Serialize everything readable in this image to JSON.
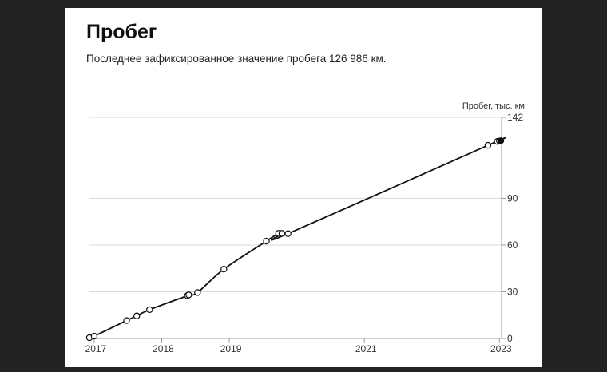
{
  "header": {
    "title": "Пробег",
    "subtitle": "Последнее зафиксированное значение пробега 126 986 км."
  },
  "chart_data": {
    "type": "line",
    "title": "Пробег",
    "ylabel": "Пробег, тыс. км",
    "xlabel": "",
    "y_ticks": [
      0,
      30,
      60,
      90,
      142
    ],
    "x_ticks": [
      2017,
      2018,
      2019,
      2021,
      2023
    ],
    "ylim": [
      0,
      142
    ],
    "grid": true,
    "colors": {
      "line": "#111111",
      "point_fill": "#ffffff",
      "last_point_fill": "#111111",
      "grid": "#d9d9d9"
    },
    "series": [
      {
        "points": [
          {
            "x": 2016.93,
            "y": 0.5
          },
          {
            "x": 2017.0,
            "y": 1.5
          },
          {
            "x": 2017.48,
            "y": 11.5
          },
          {
            "x": 2017.63,
            "y": 14.5
          },
          {
            "x": 2017.82,
            "y": 18.5
          },
          {
            "x": 2018.38,
            "y": 27.5
          },
          {
            "x": 2018.4,
            "y": 28.0
          },
          {
            "x": 2018.53,
            "y": 29.5
          },
          {
            "x": 2018.92,
            "y": 44.5
          },
          {
            "x": 2019.55,
            "y": 62.5
          },
          {
            "x": 2019.73,
            "y": 67.5
          },
          {
            "x": 2019.78,
            "y": 67.5
          },
          {
            "x": 2019.87,
            "y": 67.3
          },
          {
            "x": 2022.83,
            "y": 124.0
          },
          {
            "x": 2022.97,
            "y": 126.5
          },
          {
            "x": 2023.0,
            "y": 126.8
          },
          {
            "x": 2023.02,
            "y": 126.986
          }
        ]
      }
    ]
  }
}
